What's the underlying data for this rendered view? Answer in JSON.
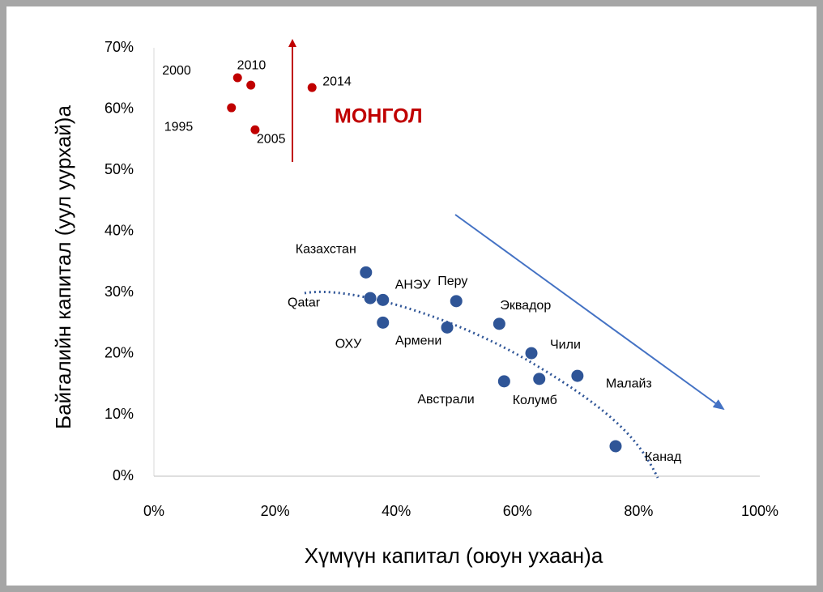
{
  "chart_data": {
    "type": "scatter",
    "x_label": "Хүмүүн капитал (оюун ухаан)а",
    "y_label": "Байгалийн капитал (уул уурхай)а",
    "annotation": "МОНГОЛ",
    "xlim": [
      0,
      100
    ],
    "xticks": [
      {
        "value": 0,
        "label": "0%"
      },
      {
        "value": 20,
        "label": "20%"
      },
      {
        "value": 40,
        "label": "40%"
      },
      {
        "value": 60,
        "label": "60%"
      },
      {
        "value": 80,
        "label": "80%"
      },
      {
        "value": 100,
        "label": "100%"
      }
    ],
    "ylim": [
      0,
      70
    ],
    "yticks": [
      {
        "value": 0,
        "label": "0%"
      },
      {
        "value": 10,
        "label": "10%"
      },
      {
        "value": 20,
        "label": "20%"
      },
      {
        "value": 30,
        "label": "30%"
      },
      {
        "value": 40,
        "label": "40%"
      },
      {
        "value": 50,
        "label": "50%"
      },
      {
        "value": 60,
        "label": "60%"
      },
      {
        "value": 70,
        "label": "70%"
      }
    ],
    "grid": false,
    "series": [
      {
        "color": "#c00000",
        "labels": [
          "1995",
          "2000",
          "2010",
          "2005",
          "2014"
        ],
        "x": [
          12.8,
          13.8,
          16.0,
          16.7,
          26.1
        ],
        "values": [
          60.2,
          65.1,
          63.9,
          56.6,
          63.5
        ]
      },
      {
        "color": "#2f5597",
        "labels": [
          "Казахстан",
          "Qatar",
          "АНЭУ",
          "ОХУ",
          "Перу",
          "Армени",
          "Эквадор",
          "Чили",
          "Австрали",
          "Колумб",
          "Малайз",
          "Канад"
        ],
        "x": [
          35.0,
          35.7,
          37.8,
          37.8,
          49.9,
          48.4,
          57.0,
          62.3,
          57.8,
          63.6,
          69.9,
          76.2
        ],
        "values": [
          33.3,
          29.1,
          28.8,
          25.1,
          28.6,
          24.3,
          24.9,
          20.1,
          15.5,
          15.9,
          16.4,
          4.9
        ]
      }
    ]
  }
}
